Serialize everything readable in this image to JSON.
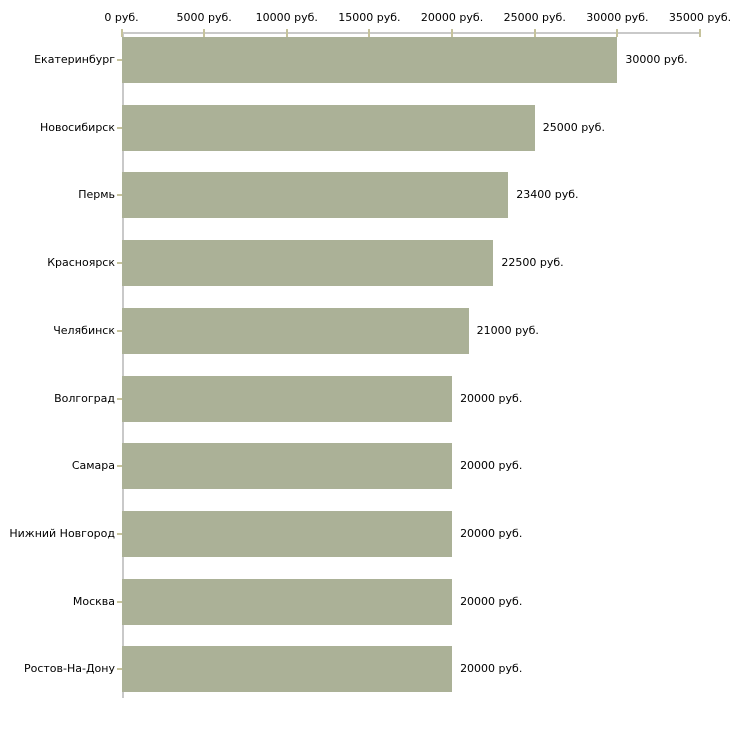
{
  "chart_data": {
    "type": "bar",
    "orientation": "horizontal",
    "title": "",
    "xlabel": "",
    "ylabel": "",
    "grid": false,
    "legend": false,
    "categories": [
      "Екатеринбург",
      "Новосибирск",
      "Пермь",
      "Красноярск",
      "Челябинск",
      "Волгоград",
      "Самара",
      "Нижний Новгород",
      "Москва",
      "Ростов-На-Дону"
    ],
    "values": [
      30000,
      25000,
      23400,
      22500,
      21000,
      20000,
      20000,
      20000,
      20000,
      20000
    ],
    "value_labels": [
      "30000 руб.",
      "25000 руб.",
      "23400 руб.",
      "22500 руб.",
      "21000 руб.",
      "20000 руб.",
      "20000 руб.",
      "20000 руб.",
      "20000 руб.",
      "20000 руб."
    ],
    "x_axis": {
      "position": "top",
      "min": 0,
      "max": 35000,
      "tick_values": [
        0,
        5000,
        10000,
        15000,
        20000,
        25000,
        30000,
        35000
      ],
      "tick_labels": [
        "0 руб.",
        "5000 руб.",
        "10000 руб.",
        "15000 руб.",
        "20000 руб.",
        "25000 руб.",
        "30000 руб.",
        "35000 руб."
      ]
    },
    "colors": {
      "bar_fill": "#abb197",
      "axis_line": "#c9c9c9",
      "tick_mark": "#c6c39c",
      "text": "#000000",
      "background": "#ffffff"
    }
  }
}
